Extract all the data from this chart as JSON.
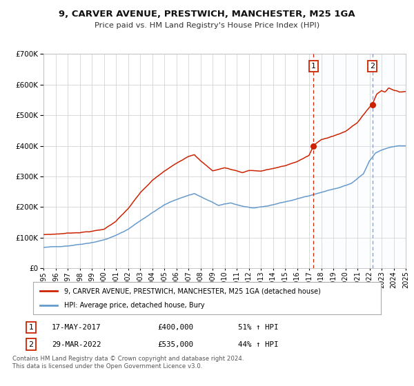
{
  "title": "9, CARVER AVENUE, PRESTWICH, MANCHESTER, M25 1GA",
  "subtitle": "Price paid vs. HM Land Registry's House Price Index (HPI)",
  "legend_line1": "9, CARVER AVENUE, PRESTWICH, MANCHESTER, M25 1GA (detached house)",
  "legend_line2": "HPI: Average price, detached house, Bury",
  "sale1_label": "1",
  "sale1_date": "17-MAY-2017",
  "sale1_price": "£400,000",
  "sale1_hpi": "51% ↑ HPI",
  "sale1_x": 2017.37,
  "sale1_y": 400000,
  "sale2_label": "2",
  "sale2_date": "29-MAR-2022",
  "sale2_price": "£535,000",
  "sale2_hpi": "44% ↑ HPI",
  "sale2_x": 2022.24,
  "sale2_y": 535000,
  "hpi_color": "#6699cc",
  "price_color": "#cc2200",
  "vline1_color": "#cc2200",
  "vline2_color": "#8899bb",
  "shade_color": "#ddeeff",
  "background_color": "#ffffff",
  "grid_color": "#cccccc",
  "ylim": [
    0,
    700000
  ],
  "xlim_start": 1995,
  "xlim_end": 2025,
  "footer_line1": "Contains HM Land Registry data © Crown copyright and database right 2024.",
  "footer_line2": "This data is licensed under the Open Government Licence v3.0.",
  "hpi_waypoints_x": [
    1995.0,
    1996.0,
    1997.0,
    1998.0,
    1999.0,
    2000.0,
    2001.0,
    2002.0,
    2003.0,
    2004.0,
    2005.0,
    2006.0,
    2007.0,
    2007.5,
    2008.5,
    2009.5,
    2010.5,
    2011.5,
    2012.5,
    2013.5,
    2014.5,
    2015.5,
    2016.5,
    2017.5,
    2018.5,
    2019.5,
    2020.5,
    2021.5,
    2022.0,
    2022.5,
    2023.0,
    2023.5,
    2024.0,
    2024.5,
    2025.0
  ],
  "hpi_waypoints_y": [
    68000,
    70000,
    74000,
    80000,
    87000,
    96000,
    110000,
    130000,
    158000,
    185000,
    210000,
    228000,
    242000,
    248000,
    228000,
    208000,
    215000,
    205000,
    198000,
    203000,
    213000,
    222000,
    232000,
    244000,
    255000,
    265000,
    278000,
    308000,
    350000,
    375000,
    385000,
    392000,
    398000,
    400000,
    400000
  ],
  "price_waypoints_x": [
    1995.0,
    1996.0,
    1997.0,
    1998.0,
    1999.0,
    2000.0,
    2001.0,
    2002.0,
    2003.0,
    2004.0,
    2005.0,
    2006.0,
    2007.0,
    2007.5,
    2008.0,
    2009.0,
    2010.0,
    2011.0,
    2011.5,
    2012.0,
    2013.0,
    2014.0,
    2015.0,
    2016.0,
    2017.0,
    2017.37,
    2018.0,
    2019.0,
    2020.0,
    2021.0,
    2022.0,
    2022.24,
    2022.6,
    2023.0,
    2023.3,
    2023.6,
    2024.0,
    2024.5,
    2025.0
  ],
  "price_waypoints_y": [
    110000,
    112000,
    115000,
    118000,
    122000,
    128000,
    155000,
    195000,
    245000,
    285000,
    315000,
    340000,
    365000,
    372000,
    352000,
    318000,
    328000,
    318000,
    312000,
    320000,
    318000,
    326000,
    334000,
    348000,
    368000,
    400000,
    418000,
    432000,
    445000,
    475000,
    525000,
    535000,
    568000,
    580000,
    575000,
    590000,
    582000,
    575000,
    578000
  ]
}
